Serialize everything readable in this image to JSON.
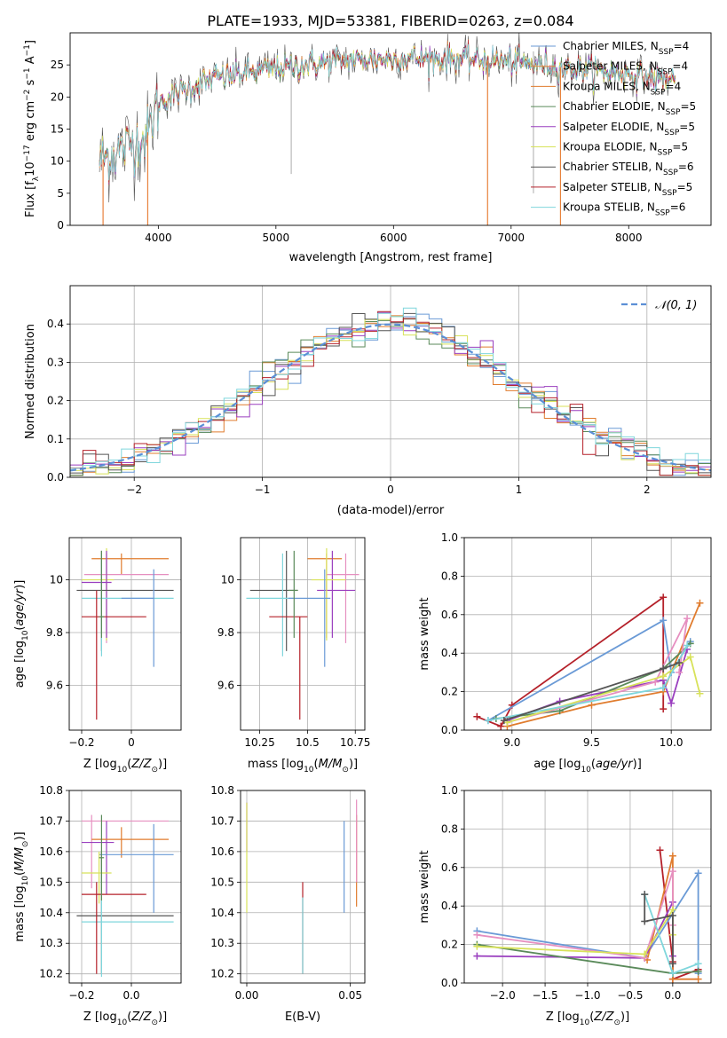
{
  "figure_title": "PLATE=1933, MJD=53381, FIBERID=0263, z=0.084",
  "colors": {
    "Chabrier MILES": "#6a9ad6",
    "Salpeter MILES": "#e8823c",
    "Kroupa MILES": "#e07c2e",
    "Chabrier ELODIE": "#5a8a5a",
    "Salpeter ELODIE": "#9a3fbf",
    "Kroupa ELODIE": "#d8e25a",
    "Chabrier STELIB": "#555555",
    "Salpeter STELIB": "#b5212a",
    "Kroupa STELIB": "#7fd6dc",
    "pink": "#e68fc0",
    "normal_curve": "#5b8fd6",
    "grid": "#b0b0b0"
  },
  "legend_spectrum": [
    {
      "label": "Chabrier MILES, N",
      "sub": "SSP",
      "suffix": "=4",
      "color_key": "Chabrier MILES"
    },
    {
      "label": "Salpeter MILES, N",
      "sub": "SSP",
      "suffix": "=4",
      "color_key": "Salpeter MILES"
    },
    {
      "label": "Kroupa MILES, N",
      "sub": "SSP",
      "suffix": "=4",
      "color_key": "Kroupa MILES"
    },
    {
      "label": "Chabrier ELODIE, N",
      "sub": "SSP",
      "suffix": "=5",
      "color_key": "Chabrier ELODIE"
    },
    {
      "label": "Salpeter ELODIE, N",
      "sub": "SSP",
      "suffix": "=5",
      "color_key": "Salpeter ELODIE"
    },
    {
      "label": "Kroupa ELODIE, N",
      "sub": "SSP",
      "suffix": "=5",
      "color_key": "Kroupa ELODIE"
    },
    {
      "label": "Chabrier STELIB, N",
      "sub": "SSP",
      "suffix": "=6",
      "color_key": "Chabrier STELIB"
    },
    {
      "label": "Salpeter STELIB, N",
      "sub": "SSP",
      "suffix": "=5",
      "color_key": "Salpeter STELIB"
    },
    {
      "label": "Kroupa STELIB, N",
      "sub": "SSP",
      "suffix": "=6",
      "color_key": "Kroupa STELIB"
    }
  ],
  "legend_hist": "𝒩(0, 1)",
  "chart_data": [
    {
      "id": "spectrum",
      "type": "line",
      "xlabel": "wavelength [Angstrom, rest frame]",
      "ylabel": "Flux [f_λ10^-17 erg cm^-2 s^-1 A^-1]",
      "xlim": [
        3250,
        8700
      ],
      "ylim": [
        0,
        30
      ],
      "xticks": [
        4000,
        5000,
        6000,
        7000,
        8000
      ],
      "yticks": [
        0,
        5,
        10,
        15,
        20,
        25
      ],
      "continuum": [
        [
          3500,
          10
        ],
        [
          3700,
          12
        ],
        [
          3900,
          14
        ],
        [
          4000,
          19
        ],
        [
          4200,
          21
        ],
        [
          4500,
          23
        ],
        [
          5000,
          24.5
        ],
        [
          5500,
          25.5
        ],
        [
          6000,
          26
        ],
        [
          6500,
          26
        ],
        [
          7000,
          25.5
        ],
        [
          7500,
          24.5
        ],
        [
          8000,
          23.5
        ],
        [
          8400,
          22.5
        ]
      ],
      "dips": [
        [
          3530,
          0
        ],
        [
          3910,
          0
        ],
        [
          6800,
          0
        ],
        [
          7420,
          0
        ]
      ],
      "spikes": [
        [
          5130,
          8
        ],
        [
          7190,
          5
        ]
      ]
    },
    {
      "id": "residual_hist",
      "type": "histogram",
      "xlabel": "(data-model)/error",
      "ylabel": "Normed distribution",
      "xlim": [
        -2.5,
        2.5
      ],
      "ylim": [
        0,
        0.5
      ],
      "xticks": [
        -2,
        -1,
        0,
        1,
        2
      ],
      "yticks": [
        0.0,
        0.1,
        0.2,
        0.3,
        0.4
      ],
      "bin_width": 0.1,
      "normal_mean": 0,
      "normal_sigma": 1
    },
    {
      "id": "age_vs_Z",
      "type": "errorbar",
      "xlabel": "Z [log10(Z/Z⊙)]",
      "ylabel": "age  [log10(age/yr)]",
      "xlim": [
        -0.25,
        0.2
      ],
      "ylim": [
        9.43,
        10.16
      ],
      "xticks": [
        -0.2,
        0.0
      ],
      "yticks": [
        9.6,
        9.8,
        10.0
      ],
      "points": [
        {
          "key": "Kroupa MILES",
          "x": -0.04,
          "y": 10.08,
          "xlo": -0.16,
          "xhi": 0.15,
          "ylo": 10.02,
          "yhi": 10.1
        },
        {
          "key": "pink",
          "x": -0.1,
          "y": 10.02,
          "xlo": -0.19,
          "xhi": 0.15,
          "ylo": 9.76,
          "yhi": 10.1
        },
        {
          "key": "Kroupa ELODIE",
          "x": -0.1,
          "y": 10.0,
          "xlo": -0.2,
          "xhi": -0.07,
          "ylo": 9.77,
          "yhi": 10.12
        },
        {
          "key": "Salpeter ELODIE",
          "x": -0.1,
          "y": 9.99,
          "xlo": -0.2,
          "xhi": -0.08,
          "ylo": 9.78,
          "yhi": 10.11
        },
        {
          "key": "Chabrier STELIB",
          "x": -0.12,
          "y": 9.96,
          "xlo": -0.22,
          "xhi": 0.17,
          "ylo": 9.73,
          "yhi": 10.11
        },
        {
          "key": "Kroupa STELIB",
          "x": -0.12,
          "y": 9.93,
          "xlo": -0.2,
          "xhi": 0.17,
          "ylo": 9.71,
          "yhi": 10.1
        },
        {
          "key": "Chabrier MILES",
          "x": 0.09,
          "y": 9.93,
          "xlo": -0.04,
          "xhi": 0.09,
          "ylo": 9.67,
          "yhi": 10.04
        },
        {
          "key": "Salpeter STELIB",
          "x": -0.14,
          "y": 9.86,
          "xlo": -0.2,
          "xhi": 0.06,
          "ylo": 9.47,
          "yhi": 9.96
        },
        {
          "key": "Chabrier ELODIE",
          "x": -0.12,
          "y": 9.86,
          "xlo": -0.13,
          "xhi": -0.11,
          "ylo": 9.78,
          "yhi": 10.11
        }
      ]
    },
    {
      "id": "age_vs_mass",
      "type": "errorbar",
      "xlabel": "mass [log10(M/M⊙)]",
      "ylabel": "",
      "xlim": [
        10.15,
        10.8
      ],
      "ylim": [
        9.43,
        10.16
      ],
      "xticks": [
        10.25,
        10.5,
        10.75
      ],
      "yticks": [
        9.6,
        9.8,
        10.0
      ],
      "points": [
        {
          "key": "Kroupa MILES",
          "x": 10.6,
          "y": 10.08,
          "xlo": 10.5,
          "xhi": 10.68,
          "ylo": 9.78,
          "yhi": 10.1
        },
        {
          "key": "pink",
          "x": 10.7,
          "y": 10.02,
          "xlo": 10.6,
          "xhi": 10.77,
          "ylo": 9.76,
          "yhi": 10.1
        },
        {
          "key": "Salpeter ELODIE",
          "x": 10.63,
          "y": 9.96,
          "xlo": 10.55,
          "xhi": 10.75,
          "ylo": 9.78,
          "yhi": 10.11
        },
        {
          "key": "Kroupa ELODIE",
          "x": 10.6,
          "y": 10.0,
          "xlo": 10.52,
          "xhi": 10.7,
          "ylo": 9.77,
          "yhi": 10.12
        },
        {
          "key": "Chabrier STELIB",
          "x": 10.39,
          "y": 9.96,
          "xlo": 10.2,
          "xhi": 10.45,
          "ylo": 9.73,
          "yhi": 10.11
        },
        {
          "key": "Kroupa STELIB",
          "x": 10.37,
          "y": 9.93,
          "xlo": 10.18,
          "xhi": 10.43,
          "ylo": 9.71,
          "yhi": 10.1
        },
        {
          "key": "Chabrier MILES",
          "x": 10.59,
          "y": 9.93,
          "xlo": 10.4,
          "xhi": 10.62,
          "ylo": 9.67,
          "yhi": 10.04
        },
        {
          "key": "Salpeter STELIB",
          "x": 10.46,
          "y": 9.86,
          "xlo": 10.3,
          "xhi": 10.5,
          "ylo": 9.47,
          "yhi": 9.86
        },
        {
          "key": "Chabrier ELODIE",
          "x": 10.43,
          "y": 9.96,
          "xlo": 10.4,
          "xhi": 10.45,
          "ylo": 9.78,
          "yhi": 10.11
        }
      ]
    },
    {
      "id": "weight_vs_age",
      "type": "line",
      "xlabel": "age  [log10(age/yr)]",
      "ylabel": "mass weight",
      "xlim": [
        8.7,
        10.25
      ],
      "ylim": [
        0,
        1
      ],
      "xticks": [
        9.0,
        9.5,
        10.0
      ],
      "yticks": [
        0.0,
        0.2,
        0.4,
        0.6,
        0.8,
        1.0
      ],
      "series": [
        {
          "key": "Salpeter STELIB",
          "x": [
            8.78,
            8.93,
            9.0,
            9.95,
            9.95
          ],
          "y": [
            0.07,
            0.02,
            0.13,
            0.69,
            0.11
          ]
        },
        {
          "key": "Chabrier MILES",
          "x": [
            8.85,
            9.95,
            10.0,
            10.12
          ],
          "y": [
            0.05,
            0.57,
            0.3,
            0.46
          ]
        },
        {
          "key": "Kroupa MILES",
          "x": [
            8.97,
            9.5,
            9.95,
            10.18
          ],
          "y": [
            0.02,
            0.13,
            0.2,
            0.66
          ]
        },
        {
          "key": "Salpeter ELODIE",
          "x": [
            8.97,
            9.3,
            9.95,
            10.0,
            10.1
          ],
          "y": [
            0.05,
            0.15,
            0.26,
            0.14,
            0.42
          ]
        },
        {
          "key": "Chabrier ELODIE",
          "x": [
            8.9,
            9.3,
            9.95,
            10.12
          ],
          "y": [
            0.06,
            0.1,
            0.32,
            0.45
          ]
        },
        {
          "key": "pink",
          "x": [
            8.97,
            9.9,
            10.1,
            10.05
          ],
          "y": [
            0.04,
            0.25,
            0.58,
            0.3
          ]
        },
        {
          "key": "Kroupa ELODIE",
          "x": [
            8.97,
            9.95,
            10.12,
            10.18
          ],
          "y": [
            0.04,
            0.28,
            0.38,
            0.19
          ]
        },
        {
          "key": "Kroupa STELIB",
          "x": [
            8.85,
            9.95,
            10.1
          ],
          "y": [
            0.05,
            0.22,
            0.44
          ]
        },
        {
          "key": "Chabrier STELIB",
          "x": [
            8.95,
            9.95,
            10.05
          ],
          "y": [
            0.05,
            0.32,
            0.35
          ]
        }
      ]
    },
    {
      "id": "mass_vs_Z",
      "type": "errorbar",
      "xlabel": "Z [log10(Z/Z⊙)]",
      "ylabel": "mass [log10(M/M⊙)]",
      "xlim": [
        -0.25,
        0.2
      ],
      "ylim": [
        10.17,
        10.8
      ],
      "xticks": [
        -0.2,
        0.0
      ],
      "yticks": [
        10.2,
        10.3,
        10.4,
        10.5,
        10.6,
        10.7,
        10.8
      ],
      "points": [
        {
          "key": "pink",
          "x": -0.16,
          "y": 10.7,
          "xlo": -0.2,
          "xhi": 0.15,
          "ylo": 10.48,
          "yhi": 10.72
        },
        {
          "key": "Salpeter ELODIE",
          "x": -0.1,
          "y": 10.63,
          "xlo": -0.2,
          "xhi": -0.07,
          "ylo": 10.46,
          "yhi": 10.7
        },
        {
          "key": "Kroupa MILES",
          "x": -0.04,
          "y": 10.64,
          "xlo": -0.16,
          "xhi": 0.15,
          "ylo": 10.58,
          "yhi": 10.68
        },
        {
          "key": "Chabrier MILES",
          "x": 0.09,
          "y": 10.59,
          "xlo": -0.13,
          "xhi": 0.17,
          "ylo": 10.4,
          "yhi": 10.69
        },
        {
          "key": "Chabrier STELIB",
          "x": -0.12,
          "y": 10.39,
          "xlo": -0.22,
          "xhi": 0.17,
          "ylo": 10.2,
          "yhi": 10.6
        },
        {
          "key": "Kroupa STELIB",
          "x": -0.12,
          "y": 10.37,
          "xlo": -0.2,
          "xhi": 0.17,
          "ylo": 10.19,
          "yhi": 10.55
        },
        {
          "key": "Kroupa ELODIE",
          "x": -0.13,
          "y": 10.53,
          "xlo": -0.2,
          "xhi": -0.08,
          "ylo": 10.43,
          "yhi": 10.6
        },
        {
          "key": "Salpeter STELIB",
          "x": -0.14,
          "y": 10.46,
          "xlo": -0.2,
          "xhi": 0.06,
          "ylo": 10.2,
          "yhi": 10.5
        },
        {
          "key": "Chabrier ELODIE",
          "x": -0.12,
          "y": 10.58,
          "xlo": -0.13,
          "xhi": -0.11,
          "ylo": 10.44,
          "yhi": 10.72
        }
      ]
    },
    {
      "id": "mass_vs_EBV",
      "type": "errorbar",
      "xlabel": "E(B-V)",
      "ylabel": "",
      "xlim": [
        -0.003,
        0.057
      ],
      "ylim": [
        10.17,
        10.8
      ],
      "xticks": [
        0.0,
        0.05
      ],
      "yticks": [
        10.2,
        10.3,
        10.4,
        10.5,
        10.6,
        10.7,
        10.8
      ],
      "points": [
        {
          "key": "Salpeter ELODIE",
          "x": 0.0,
          "y": 10.68,
          "ylo": 10.6,
          "yhi": 10.76
        },
        {
          "key": "Kroupa ELODIE",
          "x": 0.0,
          "y": 10.58,
          "ylo": 10.4,
          "yhi": 10.76
        },
        {
          "key": "Salpeter STELIB",
          "x": 0.027,
          "y": 10.46,
          "ylo": 10.2,
          "yhi": 10.5
        },
        {
          "key": "Kroupa STELIB",
          "x": 0.027,
          "y": 10.37,
          "ylo": 10.2,
          "yhi": 10.45
        },
        {
          "key": "Chabrier MILES",
          "x": 0.047,
          "y": 10.59,
          "ylo": 10.4,
          "yhi": 10.7
        },
        {
          "key": "Kroupa MILES",
          "x": 0.053,
          "y": 10.64,
          "ylo": 10.42,
          "yhi": 10.72
        },
        {
          "key": "pink",
          "x": 0.053,
          "y": 10.7,
          "ylo": 10.5,
          "yhi": 10.77
        }
      ]
    },
    {
      "id": "weight_vs_Z",
      "type": "line",
      "xlabel": "Z [log10(Z/Z⊙)]",
      "ylabel": "mass weight",
      "xlim": [
        -2.45,
        0.45
      ],
      "ylim": [
        0,
        1
      ],
      "xticks": [
        -2.0,
        -1.5,
        -1.0,
        -0.5,
        0.0
      ],
      "yticks": [
        0.0,
        0.2,
        0.4,
        0.6,
        0.8,
        1.0
      ],
      "series": [
        {
          "key": "Salpeter STELIB",
          "x": [
            -0.15,
            0.0,
            0.0,
            0.3
          ],
          "y": [
            0.69,
            0.11,
            0.02,
            0.07
          ]
        },
        {
          "key": "Chabrier MILES",
          "x": [
            -2.3,
            -0.33,
            0.3,
            0.3
          ],
          "y": [
            0.27,
            0.13,
            0.57,
            0.05
          ]
        },
        {
          "key": "Kroupa MILES",
          "x": [
            -0.3,
            0.0,
            0.0,
            0.3
          ],
          "y": [
            0.12,
            0.66,
            0.02,
            0.02
          ]
        },
        {
          "key": "Salpeter ELODIE",
          "x": [
            -2.3,
            -0.33,
            0.0,
            0.0
          ],
          "y": [
            0.14,
            0.13,
            0.42,
            0.14
          ]
        },
        {
          "key": "Chabrier ELODIE",
          "x": [
            -2.3,
            0.0,
            0.3
          ],
          "y": [
            0.2,
            0.05,
            0.06
          ]
        },
        {
          "key": "pink",
          "x": [
            -2.3,
            -0.33,
            0.0,
            0.0
          ],
          "y": [
            0.25,
            0.13,
            0.58,
            0.3
          ]
        },
        {
          "key": "Kroupa ELODIE",
          "x": [
            -2.3,
            -0.33,
            0.0,
            0.0
          ],
          "y": [
            0.19,
            0.15,
            0.38,
            0.25
          ]
        },
        {
          "key": "Kroupa STELIB",
          "x": [
            -0.33,
            0.0,
            0.3
          ],
          "y": [
            0.46,
            0.05,
            0.1
          ]
        },
        {
          "key": "Chabrier STELIB",
          "x": [
            -0.33,
            -0.33,
            0.0,
            0.0
          ],
          "y": [
            0.46,
            0.32,
            0.35,
            0.1
          ]
        }
      ]
    }
  ]
}
